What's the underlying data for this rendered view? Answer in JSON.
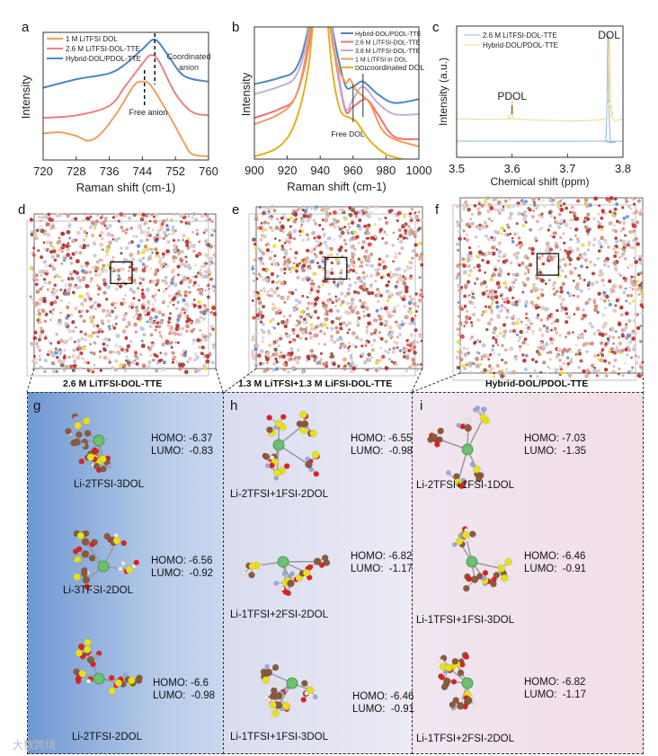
{
  "panel_letters": [
    "a",
    "b",
    "c",
    "d",
    "e",
    "f",
    "g",
    "h",
    "i"
  ],
  "chart_data": [
    {
      "id": "a",
      "type": "line",
      "xlabel": "Raman shift (cm-1)",
      "ylabel": "Intensity",
      "xlim": [
        720,
        760
      ],
      "ylim": [
        0,
        100
      ],
      "xticks": [
        720,
        728,
        736,
        744,
        752,
        760
      ],
      "series": [
        {
          "name": "1 M LiTFSI DOL",
          "color": "#f0a060",
          "x": [
            720,
            724,
            728,
            731,
            734,
            738,
            742,
            744,
            746,
            750,
            754,
            756,
            760
          ],
          "y": [
            22,
            23,
            20,
            16,
            22,
            40,
            62,
            65,
            62,
            40,
            15,
            5,
            3
          ]
        },
        {
          "name": "2.6 M LiTFSI-DOL-TTE",
          "color": "#ee7f86",
          "x": [
            720,
            728,
            736,
            740,
            744,
            746,
            748,
            752,
            756,
            760
          ],
          "y": [
            35,
            37,
            45,
            62,
            80,
            87,
            82,
            55,
            40,
            37
          ]
        },
        {
          "name": "Hybrid-DOL/PDOL-TTE",
          "color": "#4f86c0",
          "x": [
            720,
            728,
            736,
            740,
            744,
            747,
            750,
            754,
            760
          ],
          "y": [
            60,
            67,
            72,
            80,
            92,
            100,
            88,
            70,
            65
          ]
        }
      ],
      "annotations": [
        "Coordinated anion",
        "Free anion"
      ]
    },
    {
      "id": "b",
      "type": "line",
      "xlabel": "Raman shift (cm-1)",
      "ylabel": "Intensity",
      "xlim": [
        900,
        1000
      ],
      "ylim": [
        0,
        100
      ],
      "xticks": [
        900,
        920,
        940,
        960,
        980,
        1000
      ],
      "series": [
        {
          "name": "Hybrid-DOL/PDOL-TTE",
          "color": "#4f86c0",
          "x": [
            900,
            915,
            925,
            932,
            940,
            948,
            955,
            960,
            966,
            975,
            985,
            1000
          ],
          "y": [
            60,
            65,
            72,
            100,
            160,
            100,
            60,
            58,
            62,
            52,
            45,
            48
          ]
        },
        {
          "name": "2.6 M LiTFSI-DOL-TTE",
          "color": "#ee6f7a",
          "x": [
            900,
            915,
            925,
            933,
            940,
            948,
            955,
            960,
            968,
            975,
            985,
            1000
          ],
          "y": [
            33,
            40,
            50,
            90,
            160,
            90,
            40,
            42,
            48,
            36,
            18,
            16
          ]
        },
        {
          "name": "3.8 M LiTFSI-DOL-TTE",
          "color": "#c0aed6",
          "x": [
            900,
            915,
            925,
            932,
            940,
            948,
            955,
            960,
            966,
            975,
            985,
            1000
          ],
          "y": [
            52,
            58,
            66,
            95,
            160,
            95,
            42,
            48,
            58,
            45,
            36,
            36
          ]
        },
        {
          "name": "1 M LiTFSI in DOL",
          "color": "#f39a55",
          "x": [
            900,
            915,
            925,
            932,
            940,
            948,
            955,
            958,
            962,
            970,
            980,
            1000
          ],
          "y": [
            28,
            36,
            50,
            88,
            160,
            88,
            62,
            64,
            55,
            45,
            20,
            10
          ]
        },
        {
          "name": "DOL",
          "color": "#e0b020",
          "x": [
            900,
            915,
            925,
            933,
            940,
            947,
            952,
            958,
            962,
            970,
            980,
            990
          ],
          "y": [
            2,
            10,
            30,
            75,
            160,
            75,
            40,
            33,
            30,
            15,
            4,
            0
          ]
        }
      ],
      "annotations": [
        "coordinated DOL",
        "Free DOL"
      ]
    },
    {
      "id": "c",
      "type": "line",
      "xlabel": "Chemical shift (ppm)",
      "ylabel": "Intensity (a.u.)",
      "xlim": [
        3.5,
        3.8
      ],
      "ylim": [
        0,
        100
      ],
      "xticks": [
        3.5,
        3.6,
        3.7,
        3.8
      ],
      "series": [
        {
          "name": "2.6 M LiTFSI-DOL-TTE",
          "color": "#8fb4d8",
          "x": [
            3.5,
            3.765,
            3.769,
            3.771,
            3.773,
            3.775,
            3.777,
            3.781,
            3.8
          ],
          "y": [
            13,
            13,
            14,
            40,
            100,
            40,
            14,
            13,
            13
          ]
        },
        {
          "name": "Hybrid-DOL/PDOL-TTE",
          "color": "#f2d98a",
          "x": [
            3.5,
            3.594,
            3.598,
            3.6,
            3.602,
            3.606,
            3.768,
            3.772,
            3.775,
            3.778,
            3.782,
            3.8
          ],
          "y": [
            31,
            31,
            36,
            46,
            36,
            31,
            31,
            50,
            97,
            50,
            31,
            31
          ]
        }
      ],
      "annotations": [
        "PDOL",
        "DOL"
      ]
    }
  ],
  "md_captions": [
    "2.6 M LiTFSI-DOL-TTE",
    "1.3 M LiTFSI+1.3 M LiFSI-DOL-TTE",
    "Hybrid-DOL/PDOL-TTE"
  ],
  "clusters": {
    "g": [
      {
        "homo": "HOMO: -6.37",
        "lumo": "LUMO:  -0.83",
        "name": "Li-2TFSI-3DOL"
      },
      {
        "homo": "HOMO: -6.56",
        "lumo": "LUMO:  -0.92",
        "name": "Li-3TFSI-2DOL"
      },
      {
        "homo": "HOMO: -6.6",
        "lumo": "LUMO:  -0.98",
        "name": "Li-2TFSI-2DOL"
      }
    ],
    "h": [
      {
        "homo": "HOMO: -6.55",
        "lumo": "LUMO:  -0.98",
        "name": "Li-2TFSI+1FSI-2DOL"
      },
      {
        "homo": "HOMO: -6.82",
        "lumo": "LUMO:  -1.17",
        "name": "Li-1TFSI+2FSI-2DOL"
      },
      {
        "homo": "HOMO: -6.46",
        "lumo": "LUMO:  -0.91",
        "name": "Li-1TFSI+1FSI-3DOL"
      }
    ],
    "i": [
      {
        "homo": "HOMO: -7.03",
        "lumo": "LUMO:  -1.35",
        "name": "Li-2TFSI+1FSI-1DOL"
      },
      {
        "homo": "HOMO: -6.46",
        "lumo": "LUMO:  -0.91",
        "name": "Li-1TFSI+1FSI-3DOL"
      },
      {
        "homo": "HOMO: -6.82",
        "lumo": "LUMO:  -1.17",
        "name": "Li-1TFSI+2FSI-2DOL"
      }
    ]
  },
  "watermark": "大数跨境",
  "colors": {
    "panel_g": "#7fa3d6",
    "panel_h": "#e4e4f2",
    "panel_i": "#f1e0ea"
  }
}
